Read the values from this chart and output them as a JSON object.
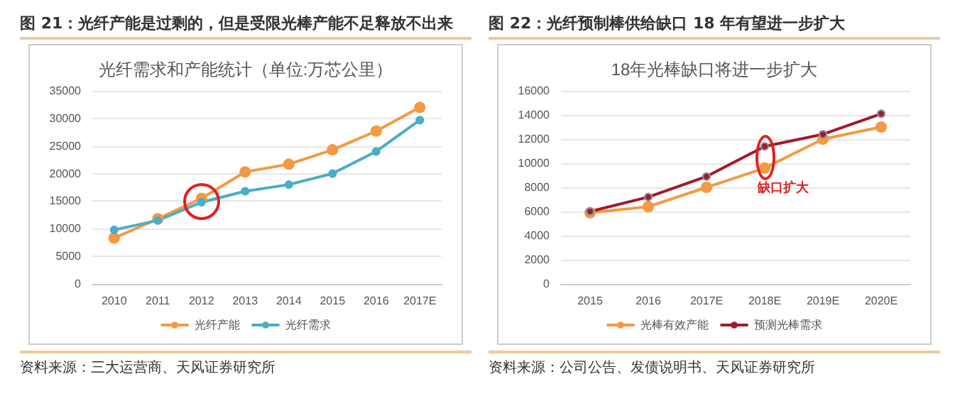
{
  "chart_data": [
    {
      "type": "line",
      "title": "图 21：光纤产能是过剩的，但是受限光棒产能不足释放不出来",
      "subtitle": "光纤需求和产能统计（单位:万芯公里）",
      "categories": [
        "2010",
        "2011",
        "2012",
        "2013",
        "2014",
        "2015",
        "2016",
        "2017E"
      ],
      "series": [
        {
          "name": "光纤产能",
          "color": "#f39a43",
          "values": [
            8300,
            11800,
            15500,
            20300,
            21700,
            24300,
            27700,
            32000
          ]
        },
        {
          "name": "光纤需求",
          "color": "#4aaec6",
          "values": [
            9800,
            11500,
            14800,
            16800,
            18000,
            20000,
            24000,
            29700
          ]
        }
      ],
      "ylim": [
        0,
        35000
      ],
      "yticks": [
        0,
        5000,
        10000,
        15000,
        20000,
        25000,
        30000,
        35000
      ],
      "grid": "y",
      "legend": "bottom",
      "marker": "circle",
      "line_style": "solid",
      "annotations": [
        "资料来源：三大运营商、天风证券研究所"
      ]
    },
    {
      "type": "line",
      "title": "图 22：光纤预制棒供给缺口 18 年有望进一步扩大",
      "subtitle": "18年光棒缺口将进一步扩大",
      "categories": [
        "2015",
        "2016",
        "2017E",
        "2018E",
        "2019E",
        "2020E"
      ],
      "series": [
        {
          "name": "光棒有效产能",
          "color": "#f39a43",
          "values": [
            5900,
            6400,
            8000,
            9600,
            12000,
            13000
          ]
        },
        {
          "name": "预测光棒需求",
          "color": "#a3192b",
          "values": [
            6000,
            7200,
            8900,
            11400,
            12400,
            14100
          ]
        }
      ],
      "ylim": [
        0,
        16000
      ],
      "yticks": [
        0,
        2000,
        4000,
        6000,
        8000,
        10000,
        12000,
        14000,
        16000
      ],
      "grid": "y",
      "legend": "bottom",
      "marker": "circle",
      "line_style": "solid",
      "annotations": [
        "缺口扩大",
        "资料来源：公司公告、发债说明书、天风证券研究所"
      ]
    }
  ]
}
